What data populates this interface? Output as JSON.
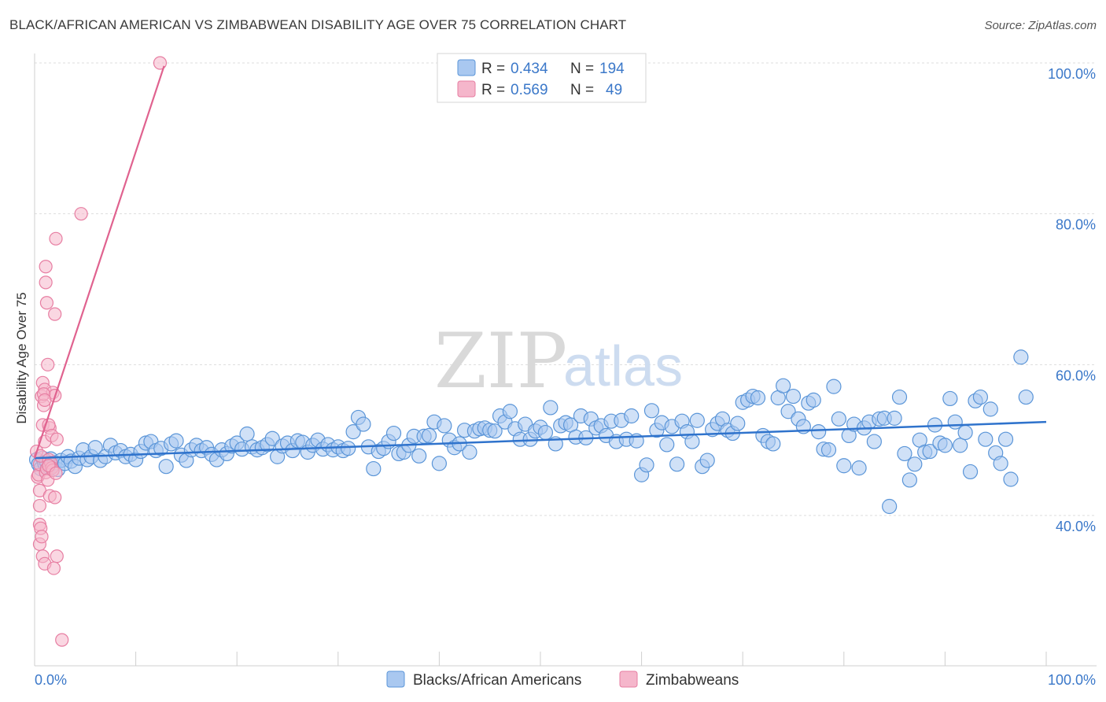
{
  "title": "BLACK/AFRICAN AMERICAN VS ZIMBABWEAN DISABILITY AGE OVER 75 CORRELATION CHART",
  "source": "Source: ZipAtlas.com",
  "watermark": {
    "zip": "ZIP",
    "atlas": "atlas"
  },
  "colors": {
    "blue_fill": "#a9c8f0",
    "blue_stroke": "#5a95d8",
    "blue_line": "#2f73cc",
    "pink_fill": "#f5b6cb",
    "pink_stroke": "#e77ea2",
    "pink_line": "#e0628f",
    "tick_text": "#3b78c9",
    "grid": "#dddddd"
  },
  "legend_top": {
    "rows": [
      {
        "r_label": "R =",
        "r_value": "0.434",
        "n_label": "N =",
        "n_value": "194"
      },
      {
        "r_label": "R =",
        "r_value": "0.569",
        "n_label": "N =",
        "n_value": "49"
      }
    ]
  },
  "legend_bottom": [
    "Blacks/African Americans",
    "Zimbabweans"
  ],
  "chart_data": {
    "type": "scatter",
    "title": "BLACK/AFRICAN AMERICAN VS ZIMBABWEAN DISABILITY AGE OVER 75 CORRELATION CHART",
    "xlabel": "",
    "ylabel": "Disability Age Over 75",
    "xlim": [
      0,
      100
    ],
    "ylim": [
      21.5,
      101
    ],
    "x_tick_labels": [
      "0.0%",
      "100.0%"
    ],
    "y_ticks": [
      40,
      60,
      80,
      100
    ],
    "y_tick_labels": [
      "40.0%",
      "60.0%",
      "80.0%",
      "100.0%"
    ],
    "grid": true,
    "legend_position": "bottom",
    "series": [
      {
        "name": "Blacks/African Americans",
        "r": 0.434,
        "n": 194,
        "trend": {
          "x": [
            0,
            100
          ],
          "y": [
            47.6,
            52.4
          ]
        },
        "points": [
          [
            0.2,
            47.4
          ],
          [
            0.4,
            46.8
          ],
          [
            0.6,
            46.2
          ],
          [
            0.8,
            47.6
          ],
          [
            1.0,
            46.9
          ],
          [
            1.2,
            47.1
          ],
          [
            1.4,
            46.4
          ],
          [
            1.6,
            47.5
          ],
          [
            1.8,
            46.6
          ],
          [
            2.0,
            47.0
          ],
          [
            2.3,
            46.1
          ],
          [
            2.6,
            47.3
          ],
          [
            3.0,
            46.9
          ],
          [
            3.3,
            47.8
          ],
          [
            3.6,
            47.2
          ],
          [
            4.0,
            46.5
          ],
          [
            4.4,
            47.6
          ],
          [
            4.8,
            48.7
          ],
          [
            5.2,
            47.4
          ],
          [
            5.6,
            47.8
          ],
          [
            6.0,
            49.0
          ],
          [
            6.5,
            47.3
          ],
          [
            7.0,
            47.8
          ],
          [
            7.5,
            49.3
          ],
          [
            8.0,
            48.3
          ],
          [
            8.5,
            48.6
          ],
          [
            9.0,
            47.8
          ],
          [
            9.5,
            48.1
          ],
          [
            10.0,
            47.4
          ],
          [
            10.5,
            48.5
          ],
          [
            11.0,
            49.6
          ],
          [
            11.5,
            49.8
          ],
          [
            12.0,
            48.6
          ],
          [
            12.5,
            48.9
          ],
          [
            13.0,
            46.5
          ],
          [
            13.5,
            49.5
          ],
          [
            14.0,
            49.9
          ],
          [
            14.5,
            48.0
          ],
          [
            15.0,
            47.3
          ],
          [
            15.5,
            48.7
          ],
          [
            16.0,
            49.3
          ],
          [
            16.5,
            48.6
          ],
          [
            17.0,
            49.0
          ],
          [
            17.5,
            48.1
          ],
          [
            18.0,
            47.4
          ],
          [
            18.5,
            48.7
          ],
          [
            19.0,
            48.2
          ],
          [
            19.5,
            49.2
          ],
          [
            20.0,
            49.6
          ],
          [
            20.5,
            48.8
          ],
          [
            21.0,
            50.8
          ],
          [
            21.5,
            49.1
          ],
          [
            22.0,
            48.7
          ],
          [
            22.5,
            49.0
          ],
          [
            23.0,
            49.4
          ],
          [
            23.5,
            50.2
          ],
          [
            24.0,
            47.8
          ],
          [
            24.5,
            49.2
          ],
          [
            25.0,
            49.6
          ],
          [
            25.5,
            48.6
          ],
          [
            26.0,
            49.9
          ],
          [
            26.5,
            49.7
          ],
          [
            27.0,
            48.4
          ],
          [
            27.5,
            49.3
          ],
          [
            28.0,
            50.0
          ],
          [
            28.5,
            48.8
          ],
          [
            29.0,
            49.4
          ],
          [
            29.5,
            48.7
          ],
          [
            30.0,
            49.1
          ],
          [
            30.5,
            48.6
          ],
          [
            31.0,
            48.9
          ],
          [
            31.5,
            51.1
          ],
          [
            32.0,
            53.0
          ],
          [
            32.5,
            52.1
          ],
          [
            33.0,
            49.1
          ],
          [
            33.5,
            46.2
          ],
          [
            34.0,
            48.5
          ],
          [
            34.5,
            48.9
          ],
          [
            35.0,
            49.8
          ],
          [
            35.5,
            50.9
          ],
          [
            36.0,
            48.2
          ],
          [
            36.5,
            48.4
          ],
          [
            37.0,
            49.3
          ],
          [
            37.5,
            50.5
          ],
          [
            38.0,
            47.9
          ],
          [
            38.5,
            50.5
          ],
          [
            39.0,
            50.6
          ],
          [
            39.5,
            52.4
          ],
          [
            40.0,
            46.9
          ],
          [
            40.5,
            51.9
          ],
          [
            41.0,
            50.0
          ],
          [
            41.5,
            49.0
          ],
          [
            42.0,
            49.5
          ],
          [
            42.5,
            51.3
          ],
          [
            43.0,
            48.4
          ],
          [
            43.5,
            51.2
          ],
          [
            44.0,
            51.5
          ],
          [
            44.5,
            51.6
          ],
          [
            45.0,
            51.3
          ],
          [
            45.5,
            51.2
          ],
          [
            46.0,
            53.2
          ],
          [
            46.5,
            52.4
          ],
          [
            47.0,
            53.8
          ],
          [
            47.5,
            51.5
          ],
          [
            48.0,
            50.1
          ],
          [
            48.5,
            52.1
          ],
          [
            49.0,
            50.1
          ],
          [
            49.5,
            51.2
          ],
          [
            50.0,
            51.7
          ],
          [
            50.5,
            51.0
          ],
          [
            51.0,
            54.3
          ],
          [
            51.5,
            49.5
          ],
          [
            52.0,
            51.9
          ],
          [
            52.5,
            52.3
          ],
          [
            53.0,
            52.0
          ],
          [
            53.5,
            50.4
          ],
          [
            54.0,
            53.2
          ],
          [
            54.5,
            50.3
          ],
          [
            55.0,
            52.8
          ],
          [
            55.5,
            51.6
          ],
          [
            56.0,
            51.9
          ],
          [
            56.5,
            50.6
          ],
          [
            57.0,
            52.5
          ],
          [
            57.5,
            49.8
          ],
          [
            58.0,
            52.6
          ],
          [
            58.5,
            50.1
          ],
          [
            59.0,
            53.2
          ],
          [
            59.5,
            49.9
          ],
          [
            60.0,
            45.4
          ],
          [
            60.5,
            46.7
          ],
          [
            61.0,
            53.9
          ],
          [
            61.5,
            51.3
          ],
          [
            62.0,
            52.3
          ],
          [
            62.5,
            49.4
          ],
          [
            63.0,
            51.8
          ],
          [
            63.5,
            46.8
          ],
          [
            64.0,
            52.5
          ],
          [
            64.5,
            51.1
          ],
          [
            65.0,
            49.8
          ],
          [
            65.5,
            52.6
          ],
          [
            66.0,
            46.5
          ],
          [
            66.5,
            47.3
          ],
          [
            67.0,
            51.4
          ],
          [
            67.5,
            52.2
          ],
          [
            68.0,
            52.8
          ],
          [
            68.5,
            51.3
          ],
          [
            69.0,
            50.9
          ],
          [
            69.5,
            52.2
          ],
          [
            70.0,
            55.0
          ],
          [
            70.5,
            55.3
          ],
          [
            71.0,
            55.8
          ],
          [
            71.5,
            55.6
          ],
          [
            72.0,
            50.6
          ],
          [
            72.5,
            49.8
          ],
          [
            73.0,
            49.5
          ],
          [
            73.5,
            55.6
          ],
          [
            74.0,
            57.2
          ],
          [
            74.5,
            53.8
          ],
          [
            75.0,
            55.8
          ],
          [
            75.5,
            52.8
          ],
          [
            76.0,
            51.8
          ],
          [
            76.5,
            54.9
          ],
          [
            77.0,
            55.3
          ],
          [
            77.5,
            51.1
          ],
          [
            78.0,
            48.8
          ],
          [
            78.5,
            48.7
          ],
          [
            79.0,
            57.1
          ],
          [
            79.5,
            52.8
          ],
          [
            80.0,
            46.6
          ],
          [
            80.5,
            50.6
          ],
          [
            81.0,
            52.1
          ],
          [
            81.5,
            46.3
          ],
          [
            82.0,
            51.6
          ],
          [
            82.5,
            52.4
          ],
          [
            83.0,
            49.8
          ],
          [
            83.5,
            52.8
          ],
          [
            84.0,
            52.9
          ],
          [
            84.5,
            41.2
          ],
          [
            85.0,
            52.9
          ],
          [
            85.5,
            55.7
          ],
          [
            86.0,
            48.2
          ],
          [
            86.5,
            44.7
          ],
          [
            87.0,
            46.8
          ],
          [
            87.5,
            50.0
          ],
          [
            88.0,
            48.4
          ],
          [
            88.5,
            48.5
          ],
          [
            89.0,
            52.0
          ],
          [
            89.5,
            49.6
          ],
          [
            90.0,
            49.3
          ],
          [
            90.5,
            55.5
          ],
          [
            91.0,
            52.4
          ],
          [
            91.5,
            49.3
          ],
          [
            92.0,
            51.0
          ],
          [
            92.5,
            45.8
          ],
          [
            93.0,
            55.2
          ],
          [
            93.5,
            55.7
          ],
          [
            94.0,
            50.1
          ],
          [
            94.5,
            54.1
          ],
          [
            95.0,
            48.3
          ],
          [
            95.5,
            46.9
          ],
          [
            96.0,
            50.1
          ],
          [
            96.5,
            44.8
          ],
          [
            97.5,
            61.0
          ],
          [
            98.0,
            55.7
          ]
        ]
      },
      {
        "name": "Zimbabweans",
        "r": 0.569,
        "n": 49,
        "trend": {
          "x": [
            0,
            12.8
          ],
          "y": [
            47.6,
            99.6
          ]
        },
        "points": [
          [
            0.2,
            48.5
          ],
          [
            0.3,
            45.1
          ],
          [
            0.4,
            45.4
          ],
          [
            0.5,
            46.8
          ],
          [
            0.5,
            43.3
          ],
          [
            0.6,
            47.9
          ],
          [
            0.7,
            55.8
          ],
          [
            0.8,
            57.6
          ],
          [
            0.8,
            52.0
          ],
          [
            0.9,
            54.6
          ],
          [
            1.0,
            56.7
          ],
          [
            1.0,
            49.8
          ],
          [
            1.1,
            45.7
          ],
          [
            1.2,
            46.2
          ],
          [
            1.3,
            44.7
          ],
          [
            1.4,
            47.4
          ],
          [
            1.5,
            51.6
          ],
          [
            1.6,
            47.0
          ],
          [
            1.7,
            46.3
          ],
          [
            1.8,
            56.3
          ],
          [
            0.5,
            41.3
          ],
          [
            0.5,
            38.8
          ],
          [
            0.5,
            36.2
          ],
          [
            0.6,
            38.3
          ],
          [
            0.7,
            37.2
          ],
          [
            0.8,
            34.6
          ],
          [
            1.0,
            33.6
          ],
          [
            1.1,
            73.0
          ],
          [
            1.1,
            70.9
          ],
          [
            1.2,
            68.2
          ],
          [
            1.3,
            60.0
          ],
          [
            1.4,
            52.0
          ],
          [
            1.5,
            42.6
          ],
          [
            1.7,
            50.6
          ],
          [
            1.8,
            46.0
          ],
          [
            2.0,
            55.9
          ],
          [
            2.2,
            50.1
          ],
          [
            2.0,
            42.4
          ],
          [
            2.0,
            66.7
          ],
          [
            2.1,
            76.7
          ],
          [
            2.2,
            34.6
          ],
          [
            1.9,
            33.0
          ],
          [
            2.7,
            23.5
          ],
          [
            4.6,
            80.0
          ],
          [
            12.4,
            100.0
          ],
          [
            0.9,
            56.1
          ],
          [
            1.0,
            55.3
          ],
          [
            1.4,
            46.6
          ],
          [
            2.1,
            45.6
          ]
        ]
      }
    ]
  }
}
